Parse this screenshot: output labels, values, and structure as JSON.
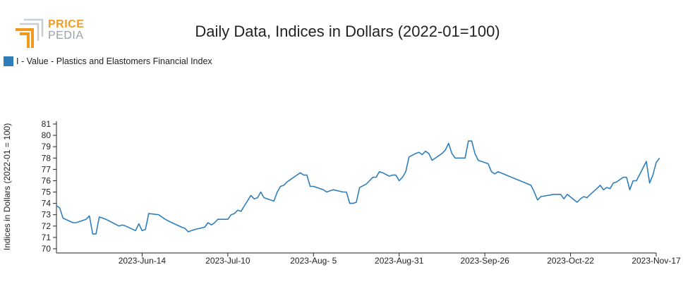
{
  "logo": {
    "line1": "PRICE",
    "line2": "PEDIA",
    "colors": {
      "orange": "#f39a1e",
      "gray": "#9aa0a6"
    }
  },
  "chart_data": {
    "type": "line",
    "title": "Daily Data, Indices in Dollars (2022-01=100)",
    "ylabel": "Indices in Dollars (2022-01 = 100)",
    "xlabel": "",
    "ylim": [
      70,
      81
    ],
    "yticks": [
      70,
      71,
      72,
      73,
      74,
      75,
      76,
      77,
      78,
      79,
      80,
      81
    ],
    "xrange": [
      "2023-05-19",
      "2023-11-17"
    ],
    "xticks": [
      {
        "date": "2023-06-14",
        "label": "2023-Jun-14"
      },
      {
        "date": "2023-07-10",
        "label": "2023-Jul-10"
      },
      {
        "date": "2023-08-05",
        "label": "2023-Aug- 5"
      },
      {
        "date": "2023-08-31",
        "label": "2023-Aug-31"
      },
      {
        "date": "2023-09-26",
        "label": "2023-Sep-26"
      },
      {
        "date": "2023-10-22",
        "label": "2023-Oct-22"
      },
      {
        "date": "2023-11-17",
        "label": "2023-Nov-17"
      }
    ],
    "grid": false,
    "legend_position": "top-left",
    "series": [
      {
        "name": "I - Value - Plastics and Elastomers Financial Index",
        "color": "#2f7ebc",
        "points": [
          [
            "2023-05-19",
            73.8
          ],
          [
            "2023-05-20",
            73.6
          ],
          [
            "2023-05-21",
            72.7
          ],
          [
            "2023-05-24",
            72.3
          ],
          [
            "2023-05-25",
            72.3
          ],
          [
            "2023-05-28",
            72.6
          ],
          [
            "2023-05-29",
            72.9
          ],
          [
            "2023-05-30",
            71.3
          ],
          [
            "2023-05-31",
            71.3
          ],
          [
            "2023-06-01",
            72.8
          ],
          [
            "2023-06-03",
            72.6
          ],
          [
            "2023-06-05",
            72.3
          ],
          [
            "2023-06-07",
            72.0
          ],
          [
            "2023-06-08",
            72.1
          ],
          [
            "2023-06-09",
            72.0
          ],
          [
            "2023-06-12",
            71.6
          ],
          [
            "2023-06-13",
            72.2
          ],
          [
            "2023-06-14",
            71.6
          ],
          [
            "2023-06-15",
            71.7
          ],
          [
            "2023-06-16",
            73.1
          ],
          [
            "2023-06-19",
            73.0
          ],
          [
            "2023-06-21",
            72.6
          ],
          [
            "2023-06-23",
            72.3
          ],
          [
            "2023-06-26",
            71.9
          ],
          [
            "2023-06-27",
            71.8
          ],
          [
            "2023-06-28",
            71.5
          ],
          [
            "2023-06-29",
            71.6
          ],
          [
            "2023-06-30",
            71.7
          ],
          [
            "2023-07-03",
            71.9
          ],
          [
            "2023-07-04",
            72.3
          ],
          [
            "2023-07-05",
            72.1
          ],
          [
            "2023-07-06",
            72.3
          ],
          [
            "2023-07-07",
            72.6
          ],
          [
            "2023-07-10",
            72.6
          ],
          [
            "2023-07-11",
            73.0
          ],
          [
            "2023-07-12",
            73.1
          ],
          [
            "2023-07-13",
            73.4
          ],
          [
            "2023-07-14",
            73.3
          ],
          [
            "2023-07-17",
            74.7
          ],
          [
            "2023-07-18",
            74.4
          ],
          [
            "2023-07-19",
            74.5
          ],
          [
            "2023-07-20",
            75.0
          ],
          [
            "2023-07-21",
            74.5
          ],
          [
            "2023-07-24",
            74.2
          ],
          [
            "2023-07-25",
            75.0
          ],
          [
            "2023-07-26",
            75.5
          ],
          [
            "2023-07-27",
            75.6
          ],
          [
            "2023-07-28",
            75.9
          ],
          [
            "2023-07-31",
            76.5
          ],
          [
            "2023-08-01",
            76.7
          ],
          [
            "2023-08-02",
            76.5
          ],
          [
            "2023-08-03",
            76.5
          ],
          [
            "2023-08-04",
            75.5
          ],
          [
            "2023-08-05",
            75.5
          ],
          [
            "2023-08-08",
            75.2
          ],
          [
            "2023-08-09",
            75.0
          ],
          [
            "2023-08-10",
            75.1
          ],
          [
            "2023-08-11",
            75.2
          ],
          [
            "2023-08-14",
            75.0
          ],
          [
            "2023-08-15",
            75.0
          ],
          [
            "2023-08-16",
            74.0
          ],
          [
            "2023-08-17",
            74.0
          ],
          [
            "2023-08-18",
            74.1
          ],
          [
            "2023-08-19",
            75.4
          ],
          [
            "2023-08-21",
            75.7
          ],
          [
            "2023-08-22",
            76.0
          ],
          [
            "2023-08-23",
            76.3
          ],
          [
            "2023-08-24",
            76.3
          ],
          [
            "2023-08-25",
            76.8
          ],
          [
            "2023-08-26",
            76.7
          ],
          [
            "2023-08-28",
            76.4
          ],
          [
            "2023-08-29",
            76.5
          ],
          [
            "2023-08-30",
            76.5
          ],
          [
            "2023-08-31",
            76.0
          ],
          [
            "2023-09-01",
            76.3
          ],
          [
            "2023-09-02",
            76.8
          ],
          [
            "2023-09-03",
            78.1
          ],
          [
            "2023-09-05",
            78.4
          ],
          [
            "2023-09-06",
            78.5
          ],
          [
            "2023-09-07",
            78.3
          ],
          [
            "2023-09-08",
            78.6
          ],
          [
            "2023-09-09",
            78.4
          ],
          [
            "2023-09-10",
            77.8
          ],
          [
            "2023-09-13",
            78.4
          ],
          [
            "2023-09-14",
            78.7
          ],
          [
            "2023-09-15",
            79.3
          ],
          [
            "2023-09-16",
            78.4
          ],
          [
            "2023-09-17",
            78.0
          ],
          [
            "2023-09-20",
            78.0
          ],
          [
            "2023-09-21",
            79.5
          ],
          [
            "2023-09-22",
            79.5
          ],
          [
            "2023-09-23",
            78.4
          ],
          [
            "2023-09-24",
            77.8
          ],
          [
            "2023-09-26",
            77.6
          ],
          [
            "2023-09-27",
            77.5
          ],
          [
            "2023-09-28",
            76.8
          ],
          [
            "2023-09-29",
            76.6
          ],
          [
            "2023-09-30",
            76.8
          ],
          [
            "2023-10-10",
            75.6
          ],
          [
            "2023-10-11",
            75.0
          ],
          [
            "2023-10-12",
            74.3
          ],
          [
            "2023-10-13",
            74.6
          ],
          [
            "2023-10-17",
            74.8
          ],
          [
            "2023-10-18",
            74.8
          ],
          [
            "2023-10-19",
            74.8
          ],
          [
            "2023-10-20",
            74.4
          ],
          [
            "2023-10-21",
            74.8
          ],
          [
            "2023-10-24",
            74.1
          ],
          [
            "2023-10-25",
            74.4
          ],
          [
            "2023-10-26",
            74.6
          ],
          [
            "2023-10-27",
            74.5
          ],
          [
            "2023-10-28",
            74.8
          ],
          [
            "2023-10-30",
            75.3
          ],
          [
            "2023-10-31",
            75.6
          ],
          [
            "2023-11-01",
            75.2
          ],
          [
            "2023-11-02",
            75.4
          ],
          [
            "2023-11-03",
            75.3
          ],
          [
            "2023-11-04",
            75.8
          ],
          [
            "2023-11-05",
            75.9
          ],
          [
            "2023-11-07",
            76.3
          ],
          [
            "2023-11-08",
            76.3
          ],
          [
            "2023-11-09",
            75.2
          ],
          [
            "2023-11-10",
            76.0
          ],
          [
            "2023-11-11",
            76.0
          ],
          [
            "2023-11-14",
            77.7
          ],
          [
            "2023-11-15",
            75.8
          ],
          [
            "2023-11-16",
            76.5
          ],
          [
            "2023-11-17",
            77.6
          ],
          [
            "2023-11-18",
            78.0
          ]
        ]
      }
    ]
  }
}
